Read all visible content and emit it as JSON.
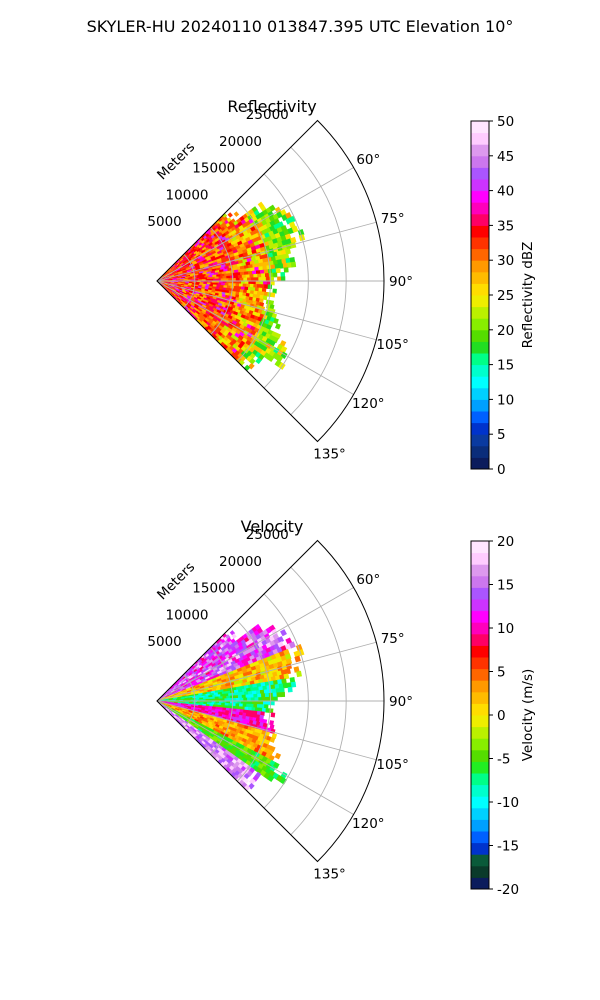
{
  "suptitle": "SKYLER-HU  20240110  013847.395 UTC Elevation 10°",
  "chart_data": [
    {
      "type": "heatmap",
      "subtype": "polar-sector (PPI)",
      "title": "Reflectivity",
      "range_label": "Meters",
      "range_ticks": [
        "5000",
        "10000",
        "15000",
        "20000",
        "25000"
      ],
      "range_max": 30000,
      "azimuth_ticks": [
        "60°",
        "75°",
        "90°",
        "105°",
        "120°",
        "135°"
      ],
      "azimuth_range_deg": [
        45,
        135
      ],
      "colorbar": {
        "label": "Reflectivity dBZ",
        "min": 0,
        "max": 50,
        "ticks": [
          "0",
          "5",
          "10",
          "15",
          "20",
          "25",
          "30",
          "35",
          "40",
          "45",
          "50"
        ],
        "colors": [
          "#0b1c5c",
          "#0a2d7a",
          "#0a3aa0",
          "#0033cc",
          "#0060ff",
          "#00a0ff",
          "#00d0ff",
          "#00ffff",
          "#00ffcc",
          "#00ff88",
          "#22dd22",
          "#55dd00",
          "#88ee00",
          "#bbf000",
          "#eeee00",
          "#ffdd00",
          "#ffbb00",
          "#ff9900",
          "#ff6600",
          "#ff3300",
          "#ff0000",
          "#ff0066",
          "#ff00bb",
          "#ff00ff",
          "#cc33ff",
          "#aa55ff",
          "#cc77ee",
          "#dd99ee",
          "#ffccff",
          "#ffe6ff"
        ]
      },
      "field_summary": "Sector filled by echoes mostly 25–40 dBZ (yellow/orange/red) near the radar, fading to 15–22 dBZ (green) at the outer edge near 15000–20000 m."
    },
    {
      "type": "heatmap",
      "subtype": "polar-sector (PPI)",
      "title": "Velocity",
      "range_label": "Meters",
      "range_ticks": [
        "5000",
        "10000",
        "15000",
        "20000",
        "25000"
      ],
      "range_max": 30000,
      "azimuth_ticks": [
        "60°",
        "75°",
        "90°",
        "105°",
        "120°",
        "135°"
      ],
      "azimuth_range_deg": [
        45,
        135
      ],
      "colorbar": {
        "label": "Velocity (m/s)",
        "min": -20,
        "max": 20,
        "ticks": [
          "-20",
          "-15",
          "-10",
          "-5",
          "0",
          "5",
          "10",
          "15",
          "20"
        ],
        "colors": [
          "#0b1c5c",
          "#0a3a2a",
          "#0a5a3a",
          "#0033cc",
          "#0060ff",
          "#00a0ff",
          "#00d0ff",
          "#00ffff",
          "#00ffcc",
          "#00ff88",
          "#22ee22",
          "#55dd00",
          "#88ee00",
          "#bbf000",
          "#eeee00",
          "#ffdd00",
          "#ffbb00",
          "#ff9900",
          "#ff6600",
          "#ff3300",
          "#ff0000",
          "#ff0066",
          "#ff00bb",
          "#ff00ff",
          "#cc33ff",
          "#aa55ff",
          "#cc77ee",
          "#dd99ee",
          "#ffccff",
          "#ffe6ff"
        ]
      },
      "field_summary": "Bands of velocity: red/magenta (+10 to +20 m/s) along the northern edge, green/cyan (-5 to -12 m/s) near 90°, a red/orange band south of 90°, then green and magenta at the southern edge."
    }
  ]
}
